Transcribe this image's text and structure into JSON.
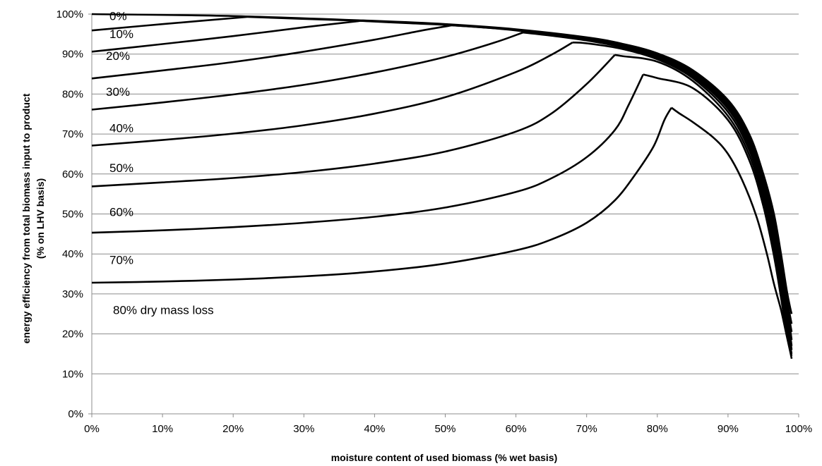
{
  "chart_data": {
    "type": "line",
    "xlabel": "moisture content of used biomass (% wet basis)",
    "ylabel_lines": [
      "energy efficiency from total biomass input to product",
      "(% on LHV basis)"
    ],
    "xlim": [
      0,
      100
    ],
    "ylim": [
      0,
      100
    ],
    "grid": true,
    "x_ticks": [
      "0%",
      "10%",
      "20%",
      "30%",
      "40%",
      "50%",
      "60%",
      "70%",
      "80%",
      "90%",
      "100%"
    ],
    "y_ticks": [
      "0%",
      "10%",
      "20%",
      "30%",
      "40%",
      "50%",
      "60%",
      "70%",
      "80%",
      "90%",
      "100%"
    ],
    "series": [
      {
        "name": "0%",
        "label_at": [
          2.5,
          98.5
        ],
        "lower": [
          [
            0,
            100.0
          ]
        ],
        "upper": [
          [
            0,
            100.0
          ],
          [
            20,
            99.5
          ],
          [
            40,
            98.3
          ],
          [
            50,
            97.5
          ],
          [
            60,
            96.2
          ],
          [
            70,
            94.2
          ],
          [
            75,
            92.6
          ],
          [
            80,
            90.2
          ],
          [
            85,
            86.0
          ],
          [
            90,
            78.5
          ],
          [
            93,
            70.0
          ],
          [
            95,
            60.0
          ],
          [
            96.5,
            50.0
          ],
          [
            97.5,
            40.0
          ],
          [
            98.3,
            31.0
          ],
          [
            98.8,
            26.5
          ],
          [
            99,
            25.0
          ]
        ]
      },
      {
        "name": "10%",
        "label_at": [
          2.5,
          94.0
        ],
        "lower": [
          [
            0,
            95.9
          ],
          [
            10,
            97.5
          ],
          [
            22,
            99.3
          ]
        ],
        "upper": [
          [
            22,
            99.3
          ],
          [
            30,
            98.8
          ],
          [
            40,
            98.2
          ],
          [
            50,
            97.4
          ],
          [
            60,
            96.1
          ],
          [
            70,
            94.0
          ],
          [
            75,
            92.4
          ],
          [
            80,
            90.0
          ],
          [
            85,
            85.7
          ],
          [
            90,
            78.0
          ],
          [
            93,
            69.3
          ],
          [
            95,
            59.0
          ],
          [
            96.5,
            48.5
          ],
          [
            97.5,
            38.5
          ],
          [
            98.3,
            29.0
          ],
          [
            98.8,
            24.3
          ],
          [
            99,
            22.5
          ]
        ]
      },
      {
        "name": "20%",
        "label_at": [
          2.0,
          88.5
        ],
        "lower": [
          [
            0,
            90.6
          ],
          [
            10,
            92.5
          ],
          [
            20,
            94.5
          ],
          [
            30,
            96.7
          ],
          [
            38,
            98.3
          ]
        ],
        "upper": [
          [
            38,
            98.3
          ],
          [
            45,
            97.7
          ],
          [
            50,
            97.3
          ],
          [
            60,
            96.0
          ],
          [
            70,
            93.8
          ],
          [
            75,
            92.2
          ],
          [
            80,
            89.7
          ],
          [
            85,
            85.3
          ],
          [
            90,
            77.4
          ],
          [
            93,
            68.6
          ],
          [
            95,
            58.0
          ],
          [
            96.5,
            47.0
          ],
          [
            97.5,
            37.0
          ],
          [
            98.3,
            27.5
          ],
          [
            98.8,
            22.5
          ],
          [
            99,
            20.5
          ]
        ]
      },
      {
        "name": "30%",
        "label_at": [
          2.0,
          79.5
        ],
        "lower": [
          [
            0,
            83.9
          ],
          [
            10,
            85.9
          ],
          [
            20,
            88.0
          ],
          [
            30,
            90.6
          ],
          [
            40,
            93.6
          ],
          [
            47,
            96.0
          ],
          [
            51,
            97.2
          ]
        ],
        "upper": [
          [
            51,
            97.2
          ],
          [
            55,
            96.7
          ],
          [
            60,
            95.9
          ],
          [
            70,
            93.6
          ],
          [
            75,
            92.0
          ],
          [
            80,
            89.4
          ],
          [
            85,
            84.9
          ],
          [
            90,
            76.9
          ],
          [
            93,
            67.8
          ],
          [
            95,
            57.0
          ],
          [
            96.5,
            45.5
          ],
          [
            97.5,
            35.5
          ],
          [
            98.3,
            26.0
          ],
          [
            98.8,
            21.0
          ],
          [
            99,
            18.5
          ]
        ]
      },
      {
        "name": "40%",
        "label_at": [
          2.5,
          70.5
        ],
        "lower": [
          [
            0,
            76.1
          ],
          [
            10,
            77.9
          ],
          [
            20,
            79.9
          ],
          [
            30,
            82.3
          ],
          [
            40,
            85.4
          ],
          [
            50,
            89.3
          ],
          [
            57,
            92.9
          ],
          [
            61,
            95.4
          ]
        ],
        "upper": [
          [
            61,
            95.4
          ],
          [
            65,
            94.6
          ],
          [
            70,
            93.4
          ],
          [
            75,
            91.7
          ],
          [
            80,
            89.1
          ],
          [
            85,
            84.5
          ],
          [
            90,
            76.3
          ],
          [
            93,
            67.0
          ],
          [
            95,
            56.0
          ],
          [
            96.5,
            44.0
          ],
          [
            97.5,
            34.0
          ],
          [
            98.3,
            24.5
          ],
          [
            98.8,
            19.5
          ],
          [
            99,
            17.0
          ]
        ]
      },
      {
        "name": "50%",
        "label_at": [
          2.5,
          60.5
        ],
        "lower": [
          [
            0,
            67.1
          ],
          [
            10,
            68.5
          ],
          [
            20,
            70.1
          ],
          [
            30,
            72.2
          ],
          [
            40,
            75.1
          ],
          [
            50,
            79.2
          ],
          [
            60,
            85.5
          ],
          [
            65,
            89.8
          ],
          [
            68,
            92.9
          ]
        ],
        "upper": [
          [
            68,
            92.9
          ],
          [
            70,
            92.7
          ],
          [
            75,
            91.3
          ],
          [
            80,
            88.7
          ],
          [
            85,
            84.0
          ],
          [
            90,
            75.5
          ],
          [
            93,
            66.0
          ],
          [
            95,
            55.0
          ],
          [
            96.5,
            42.5
          ],
          [
            97.5,
            32.5
          ],
          [
            98.3,
            23.0
          ],
          [
            98.8,
            18.5
          ],
          [
            99,
            16.0
          ]
        ]
      },
      {
        "name": "60%",
        "label_at": [
          2.5,
          49.5
        ],
        "lower": [
          [
            0,
            56.9
          ],
          [
            10,
            57.9
          ],
          [
            20,
            59.0
          ],
          [
            30,
            60.5
          ],
          [
            40,
            62.6
          ],
          [
            50,
            65.6
          ],
          [
            60,
            70.6
          ],
          [
            65,
            75.1
          ],
          [
            70,
            82.5
          ],
          [
            74,
            89.8
          ]
        ],
        "upper": [
          [
            74,
            89.8
          ],
          [
            75,
            89.5
          ],
          [
            80,
            88.1
          ],
          [
            85,
            83.3
          ],
          [
            90,
            74.5
          ],
          [
            93,
            64.8
          ],
          [
            95,
            53.5
          ],
          [
            96.5,
            41.0
          ],
          [
            97.5,
            31.0
          ],
          [
            98.3,
            21.5
          ],
          [
            98.8,
            17.0
          ],
          [
            99,
            15.0
          ]
        ]
      },
      {
        "name": "70%",
        "label_at": [
          2.5,
          37.5
        ],
        "lower": [
          [
            0,
            45.3
          ],
          [
            10,
            45.9
          ],
          [
            20,
            46.7
          ],
          [
            30,
            47.8
          ],
          [
            40,
            49.3
          ],
          [
            50,
            51.6
          ],
          [
            60,
            55.5
          ],
          [
            65,
            58.9
          ],
          [
            70,
            64.2
          ],
          [
            74,
            71.0
          ],
          [
            76,
            77.5
          ],
          [
            78,
            84.9
          ]
        ],
        "upper": [
          [
            78,
            84.9
          ],
          [
            80,
            84.0
          ],
          [
            85,
            81.5
          ],
          [
            90,
            73.5
          ],
          [
            93,
            63.5
          ],
          [
            95,
            52.0
          ],
          [
            96.5,
            39.5
          ],
          [
            97.5,
            29.0
          ],
          [
            98.3,
            20.0
          ],
          [
            98.8,
            16.0
          ],
          [
            99,
            14.5
          ]
        ]
      },
      {
        "name": "80% dry mass loss",
        "label_at": [
          3.0,
          25.0
        ],
        "lower": [
          [
            0,
            32.8
          ],
          [
            10,
            33.1
          ],
          [
            20,
            33.6
          ],
          [
            30,
            34.4
          ],
          [
            40,
            35.6
          ],
          [
            50,
            37.6
          ],
          [
            60,
            40.9
          ],
          [
            65,
            43.6
          ],
          [
            70,
            47.8
          ],
          [
            74,
            53.4
          ],
          [
            77,
            60.2
          ],
          [
            79.5,
            67.0
          ],
          [
            81,
            73.5
          ],
          [
            82,
            76.6
          ]
        ],
        "upper": [
          [
            82,
            76.6
          ],
          [
            83,
            75.3
          ],
          [
            85,
            73.0
          ],
          [
            88,
            69.0
          ],
          [
            90,
            65.0
          ],
          [
            92,
            58.5
          ],
          [
            94,
            49.5
          ],
          [
            95.5,
            40.0
          ],
          [
            96.5,
            32.5
          ],
          [
            97.5,
            26.0
          ],
          [
            98.3,
            19.5
          ],
          [
            98.8,
            15.5
          ],
          [
            99,
            13.8
          ]
        ]
      }
    ]
  }
}
